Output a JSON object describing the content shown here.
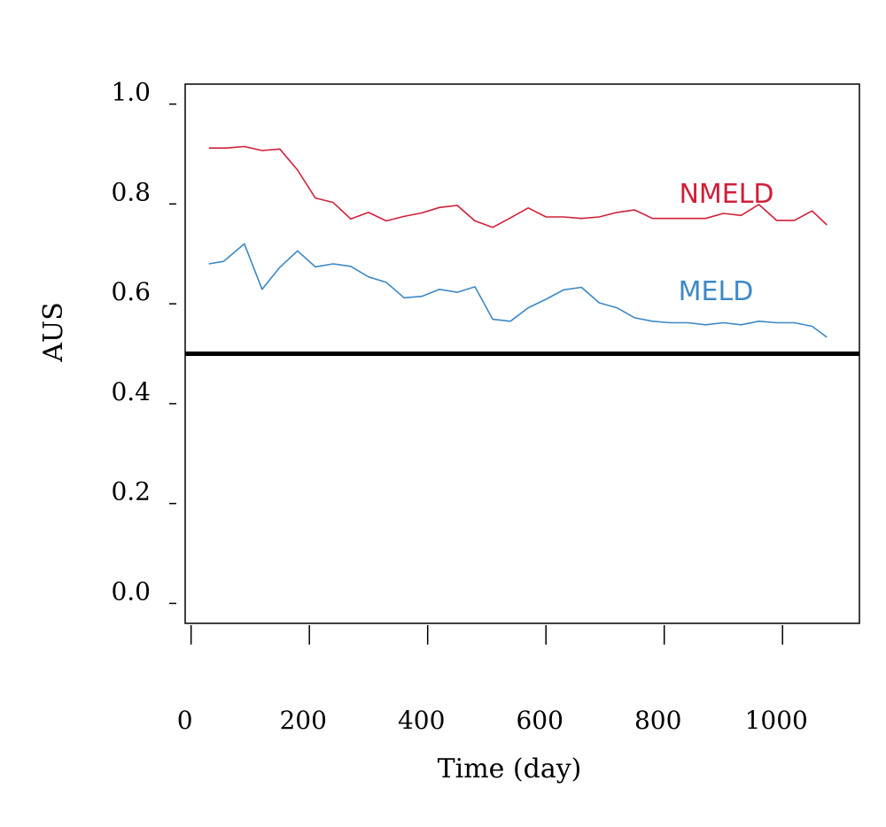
{
  "chart_data": {
    "type": "line",
    "title": "",
    "xlabel": "Time (day)",
    "ylabel": "AUS",
    "xlim": [
      -10,
      1130
    ],
    "ylim": [
      -0.04,
      1.04
    ],
    "xticks": [
      0,
      200,
      400,
      600,
      800,
      1000
    ],
    "xtick_labels": [
      "0",
      "200",
      "400",
      "600",
      "800",
      "1000"
    ],
    "yticks": [
      0.0,
      0.2,
      0.4,
      0.6,
      0.8,
      1.0
    ],
    "ytick_labels": [
      "0.0",
      "0.2",
      "0.4",
      "0.6",
      "0.8",
      "1.0"
    ],
    "grid": false,
    "reference_line": {
      "y": 0.5,
      "color": "#000000"
    },
    "series": [
      {
        "name": "NMELD",
        "color": "#d0203a",
        "points": [
          [
            30,
            0.912
          ],
          [
            60,
            0.912
          ],
          [
            90,
            0.915
          ],
          [
            120,
            0.907
          ],
          [
            150,
            0.91
          ],
          [
            180,
            0.868
          ],
          [
            210,
            0.812
          ],
          [
            240,
            0.803
          ],
          [
            270,
            0.77
          ],
          [
            300,
            0.783
          ],
          [
            330,
            0.766
          ],
          [
            360,
            0.775
          ],
          [
            390,
            0.782
          ],
          [
            420,
            0.793
          ],
          [
            450,
            0.797
          ],
          [
            480,
            0.766
          ],
          [
            510,
            0.753
          ],
          [
            540,
            0.772
          ],
          [
            570,
            0.792
          ],
          [
            600,
            0.774
          ],
          [
            630,
            0.774
          ],
          [
            660,
            0.771
          ],
          [
            690,
            0.774
          ],
          [
            720,
            0.783
          ],
          [
            750,
            0.788
          ],
          [
            780,
            0.771
          ],
          [
            810,
            0.771
          ],
          [
            840,
            0.771
          ],
          [
            870,
            0.771
          ],
          [
            900,
            0.781
          ],
          [
            930,
            0.777
          ],
          [
            960,
            0.799
          ],
          [
            990,
            0.767
          ],
          [
            1020,
            0.767
          ],
          [
            1050,
            0.786
          ],
          [
            1075,
            0.758
          ]
        ]
      },
      {
        "name": "MELD",
        "color": "#3d88c6",
        "points": [
          [
            30,
            0.68
          ],
          [
            55,
            0.685
          ],
          [
            90,
            0.72
          ],
          [
            120,
            0.629
          ],
          [
            150,
            0.673
          ],
          [
            180,
            0.706
          ],
          [
            210,
            0.674
          ],
          [
            240,
            0.68
          ],
          [
            270,
            0.675
          ],
          [
            300,
            0.654
          ],
          [
            330,
            0.643
          ],
          [
            360,
            0.612
          ],
          [
            390,
            0.615
          ],
          [
            420,
            0.629
          ],
          [
            450,
            0.623
          ],
          [
            480,
            0.634
          ],
          [
            510,
            0.569
          ],
          [
            540,
            0.565
          ],
          [
            570,
            0.592
          ],
          [
            600,
            0.609
          ],
          [
            630,
            0.628
          ],
          [
            660,
            0.633
          ],
          [
            690,
            0.602
          ],
          [
            720,
            0.592
          ],
          [
            750,
            0.572
          ],
          [
            780,
            0.565
          ],
          [
            810,
            0.562
          ],
          [
            840,
            0.562
          ],
          [
            870,
            0.558
          ],
          [
            900,
            0.562
          ],
          [
            930,
            0.558
          ],
          [
            960,
            0.565
          ],
          [
            990,
            0.562
          ],
          [
            1020,
            0.562
          ],
          [
            1050,
            0.555
          ],
          [
            1075,
            0.533
          ]
        ]
      }
    ]
  }
}
